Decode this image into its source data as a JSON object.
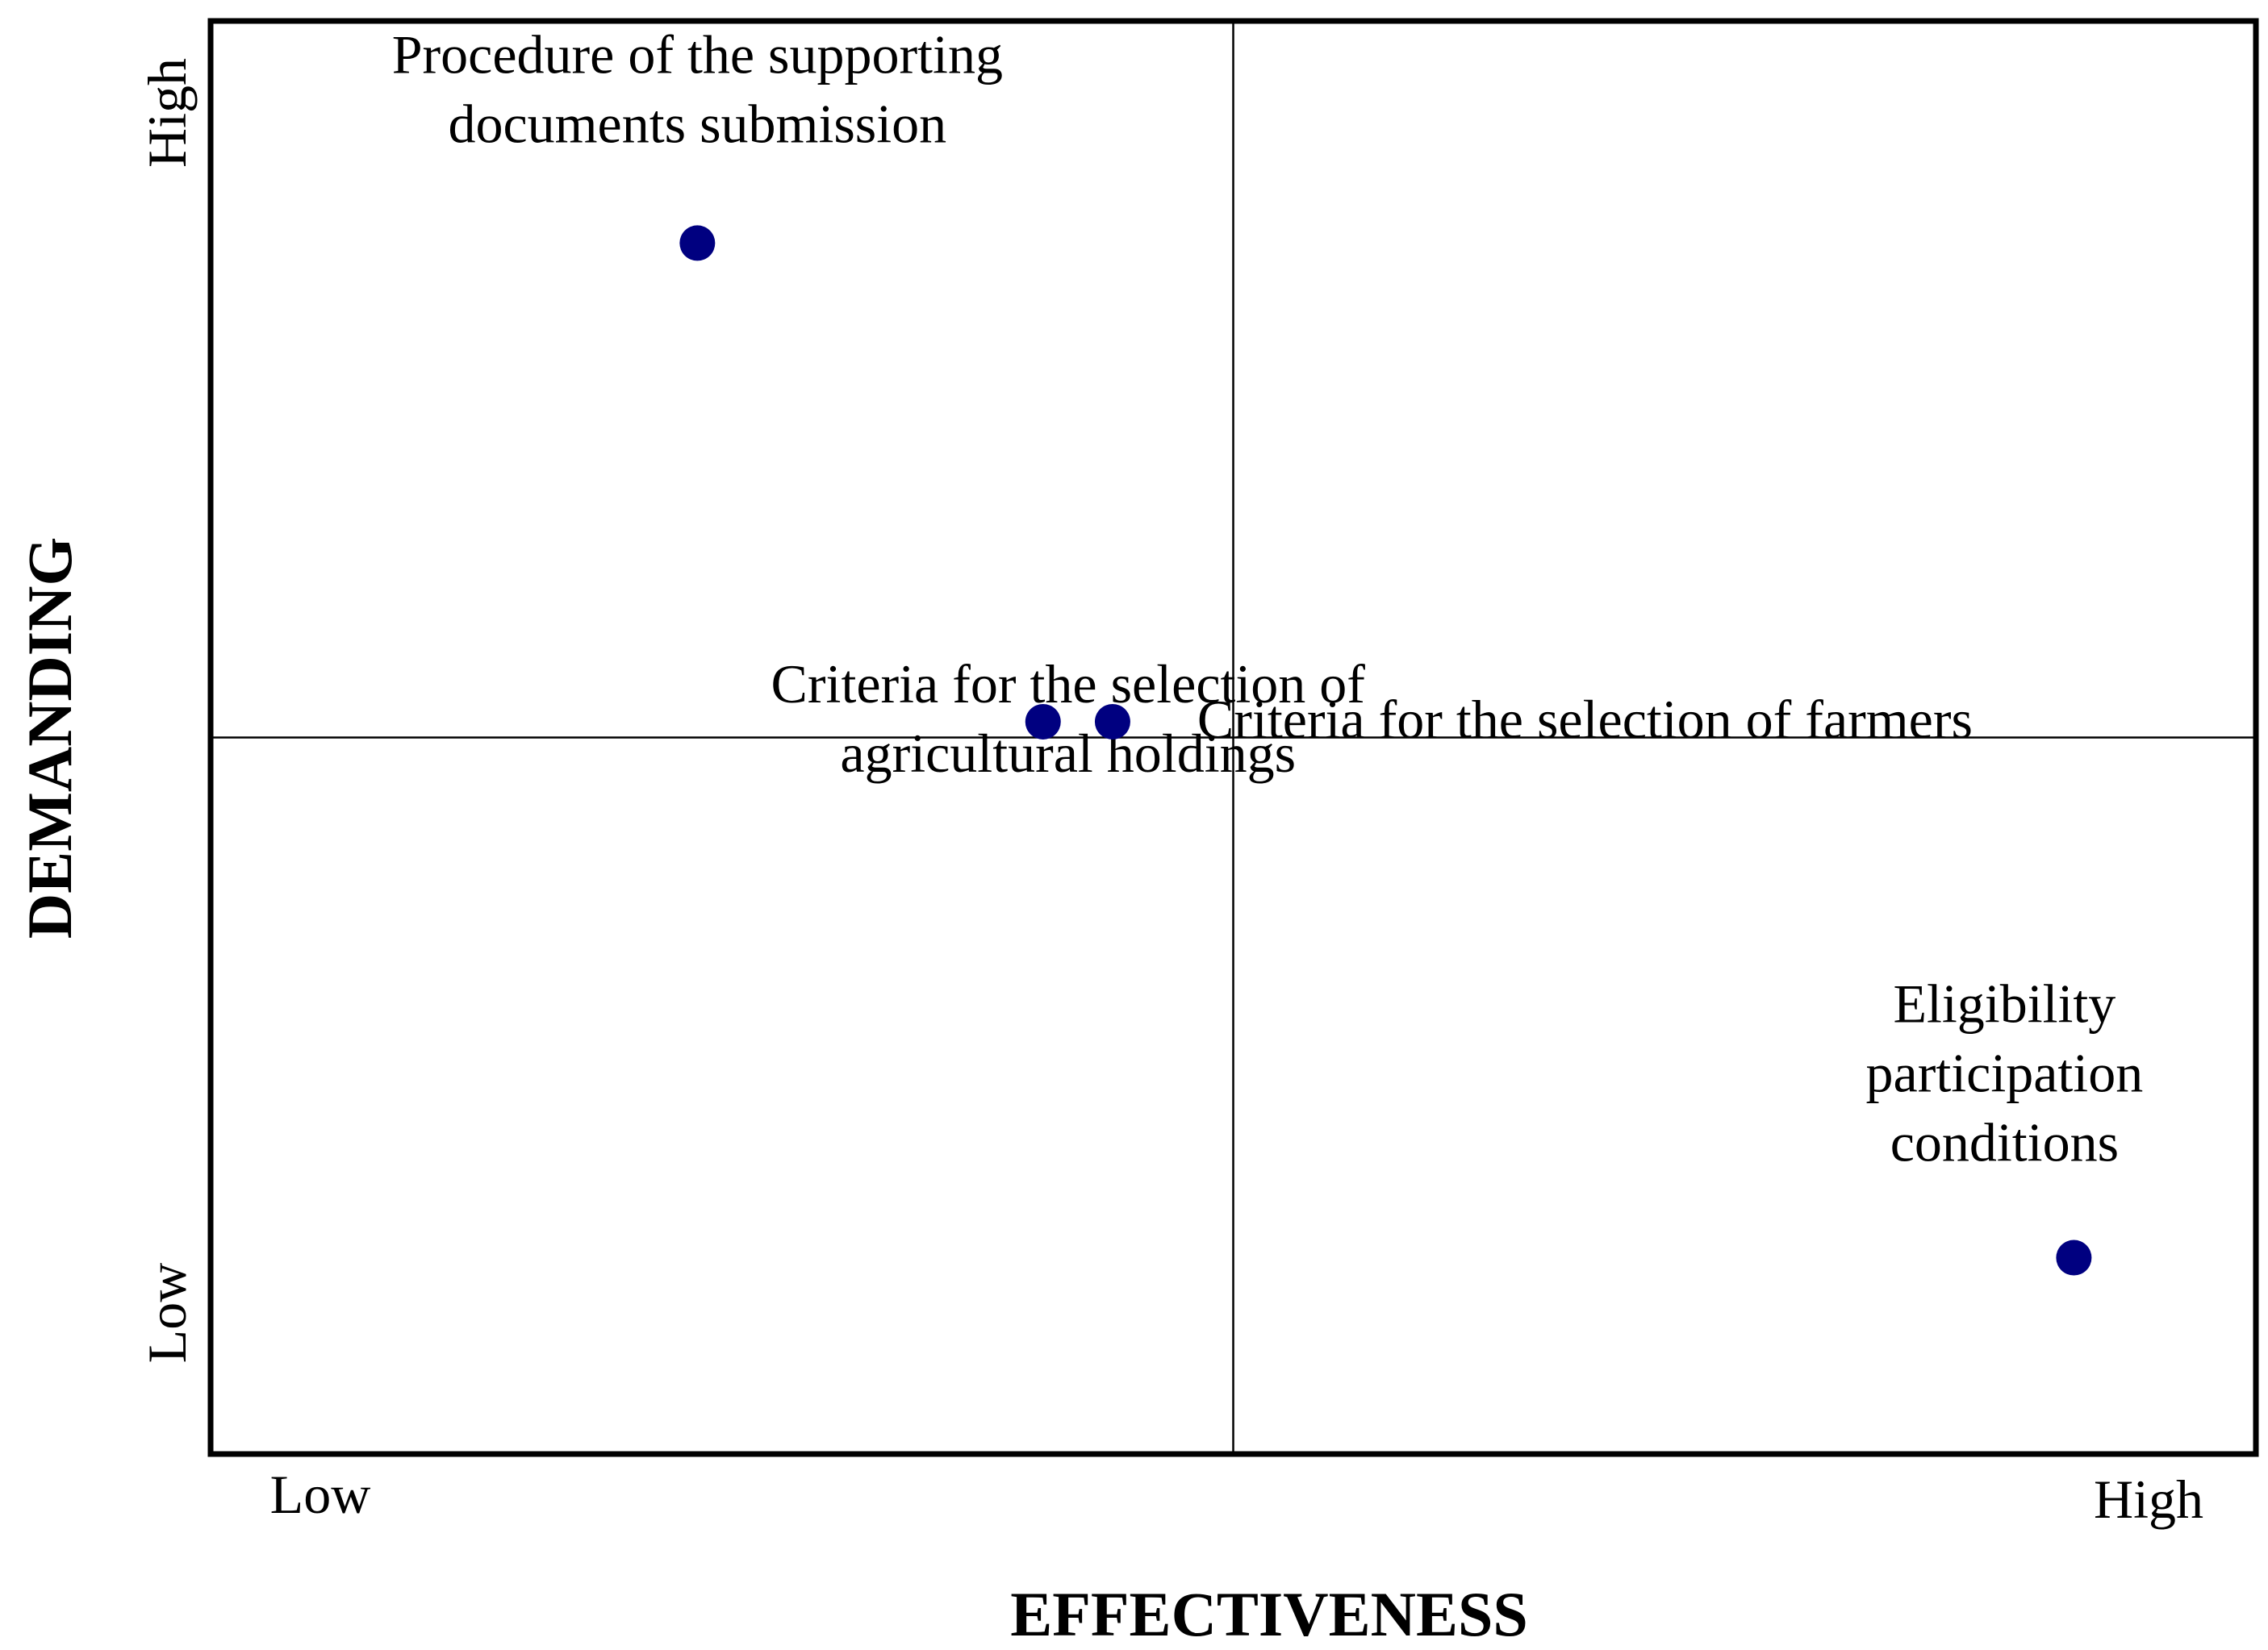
{
  "chart_data": {
    "type": "scatter",
    "xlabel": "EFFECTIVENESS",
    "ylabel": "DEMANDING",
    "x_tick_labels": {
      "low": "Low",
      "high": "High"
    },
    "y_tick_labels": {
      "low": "Low",
      "high": "High"
    },
    "xlim": [
      0,
      1
    ],
    "ylim": [
      0,
      1
    ],
    "quadrant_divider": {
      "x": 0.5,
      "y": 0.5
    },
    "grid": false,
    "legend": "none",
    "marker_color": "#000080",
    "points": [
      {
        "label_lines": [
          "Procedure of the supporting",
          "documents submission"
        ],
        "x": 0.238,
        "y": 0.845
      },
      {
        "label_lines": [
          "Criteria for the selection of",
          "agricultural holdings"
        ],
        "x": 0.407,
        "y": 0.511
      },
      {
        "label_lines": [
          "Criteria for the selection of farmers"
        ],
        "x": 0.441,
        "y": 0.511
      },
      {
        "label_lines": [
          "Eligibility",
          "participation",
          "conditions"
        ],
        "x": 0.911,
        "y": 0.137
      }
    ]
  }
}
